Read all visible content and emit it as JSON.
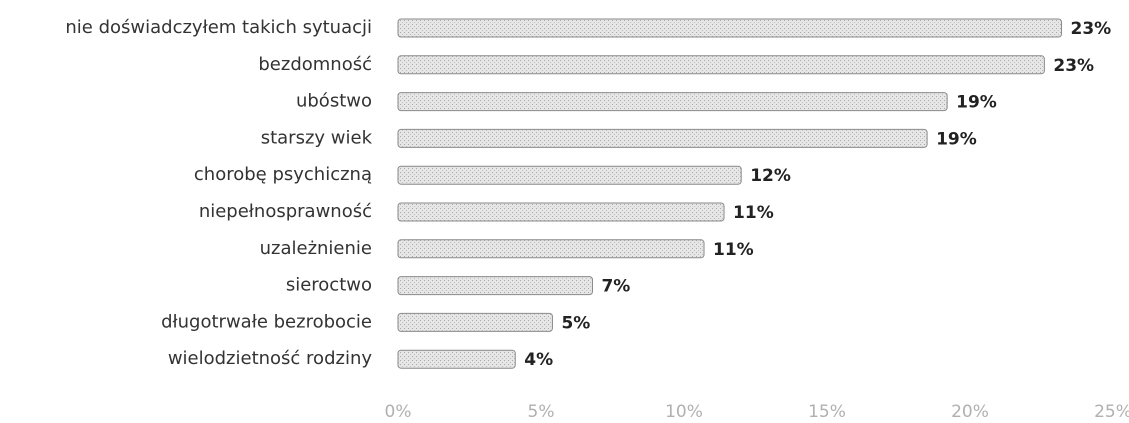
{
  "chart_data": {
    "type": "bar",
    "orientation": "horizontal",
    "categories": [
      "nie doświadczyłem takich sytuacji",
      "bezdomność",
      "ubóstwo",
      "starszy wiek",
      "chorobę psychiczną",
      "niepełnosprawność",
      "uzależnienie",
      "sieroctwo",
      "długotrwałe bezrobocie",
      "wielodzietność rodziny"
    ],
    "values": [
      23.2,
      22.6,
      19.2,
      18.5,
      12.0,
      11.4,
      10.7,
      6.8,
      5.4,
      4.1
    ],
    "value_labels": [
      "23%",
      "23%",
      "19%",
      "19%",
      "12%",
      "11%",
      "11%",
      "7%",
      "5%",
      "4%"
    ],
    "color": "#d9d9d9",
    "xlim": [
      0,
      25
    ],
    "xticks": [
      {
        "value": 0,
        "label": "0%"
      },
      {
        "value": 5,
        "label": "5%"
      },
      {
        "value": 10,
        "label": "10%"
      },
      {
        "value": 15,
        "label": "15%"
      },
      {
        "value": 20,
        "label": "20%"
      },
      {
        "value": 25,
        "label": "25%"
      }
    ],
    "grid": false
  }
}
